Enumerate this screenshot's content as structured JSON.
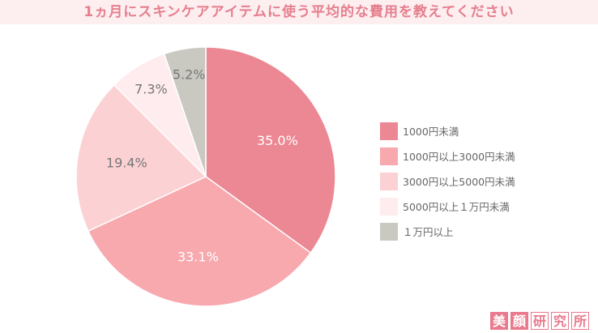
{
  "chart_data": {
    "type": "pie",
    "title": "1ヵ月にスキンケアアイテムに使う平均的な費用を教えてください",
    "categories": [
      "1000円未満",
      "1000円以上3000円未満",
      "3000円以上5000円未満",
      "5000円以上１万円未満",
      "１万円以上"
    ],
    "values": [
      35.0,
      33.1,
      19.4,
      7.3,
      5.2
    ],
    "labels": [
      "35.0%",
      "33.1%",
      "19.4%",
      "7.3%",
      "5.2%"
    ],
    "colors": [
      "#ec8794",
      "#f7a9ae",
      "#fcd1d4",
      "#feecee",
      "#c9c9c2"
    ],
    "label_colors": [
      "#ffffff",
      "#ffffff",
      "#777777",
      "#777777",
      "#777777"
    ],
    "start": "top",
    "direction": "clockwise",
    "legend_position": "right"
  },
  "logo": [
    "美",
    "顔",
    "研",
    "究",
    "所"
  ]
}
